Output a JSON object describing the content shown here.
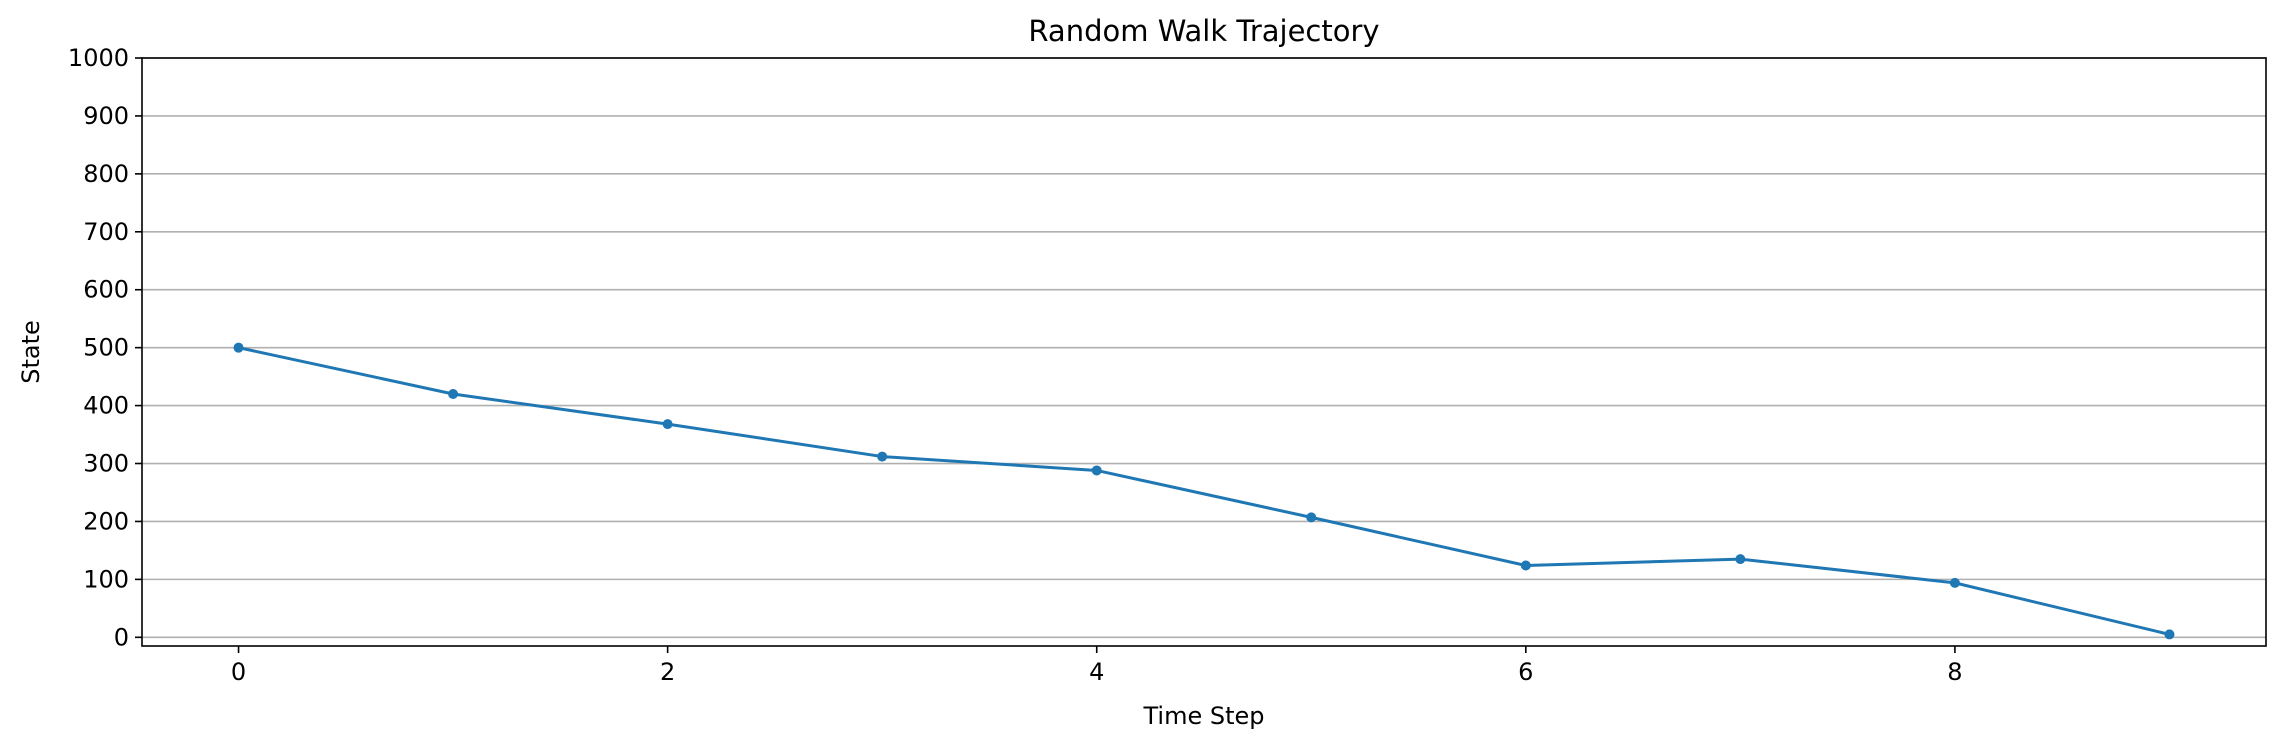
{
  "chart_data": {
    "type": "line",
    "title": "Random Walk Trajectory",
    "xlabel": "Time Step",
    "ylabel": "State",
    "xlim": [
      -0.45,
      9.45
    ],
    "ylim": [
      -15,
      1000
    ],
    "xticks": [
      0,
      2,
      4,
      6,
      8
    ],
    "yticks": [
      0,
      100,
      200,
      300,
      400,
      500,
      600,
      700,
      800,
      900,
      1000
    ],
    "grid": "horizontal",
    "legend": "none",
    "series": [
      {
        "color": "#1f77b4",
        "marker": "circle",
        "x": [
          0,
          1,
          2,
          3,
          4,
          5,
          6,
          7,
          8,
          9
        ],
        "y": [
          500,
          420,
          368,
          312,
          288,
          207,
          124,
          135,
          94,
          5
        ]
      }
    ]
  }
}
